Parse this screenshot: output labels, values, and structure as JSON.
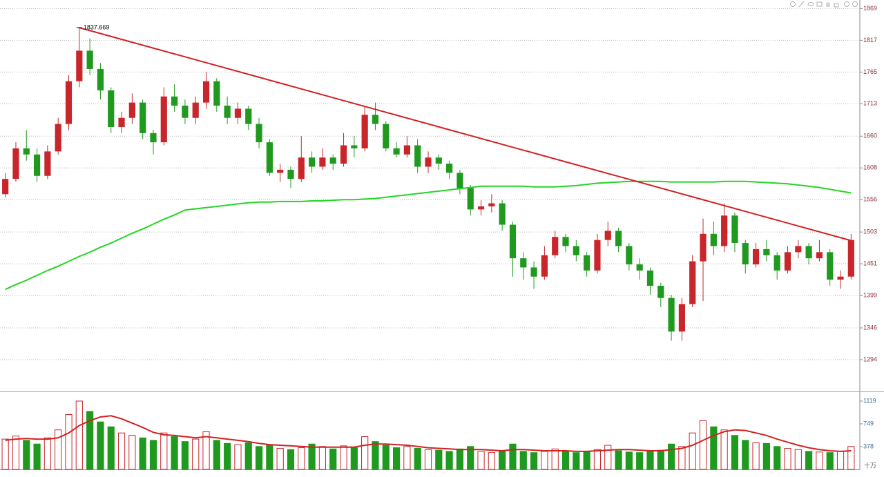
{
  "chart_data": [
    {
      "type": "candlestick",
      "ylim": [
        1242,
        1883
      ],
      "yticks": [
        1869,
        1817,
        1765,
        1713,
        1660,
        1608,
        1556,
        1503,
        1451,
        1399,
        1346,
        1294
      ],
      "grid": true,
      "up_color": "#c8262b",
      "down_color": "#1f9a1f",
      "series": [
        {
          "type": "candlestick",
          "values": [
            [
              1565,
              1600,
              1560,
              1590
            ],
            [
              1590,
              1650,
              1585,
              1640
            ],
            [
              1640,
              1670,
              1620,
              1630
            ],
            [
              1630,
              1640,
              1585,
              1595
            ],
            [
              1595,
              1645,
              1590,
              1635
            ],
            [
              1635,
              1690,
              1630,
              1680
            ],
            [
              1680,
              1760,
              1670,
              1750
            ],
            [
              1750,
              1837.669,
              1740,
              1800
            ],
            [
              1800,
              1820,
              1760,
              1770
            ],
            [
              1770,
              1780,
              1720,
              1735
            ],
            [
              1735,
              1740,
              1665,
              1675
            ],
            [
              1675,
              1700,
              1665,
              1690
            ],
            [
              1690,
              1730,
              1680,
              1715
            ],
            [
              1715,
              1720,
              1655,
              1665
            ],
            [
              1665,
              1670,
              1630,
              1650
            ],
            [
              1650,
              1740,
              1645,
              1725
            ],
            [
              1725,
              1745,
              1700,
              1710
            ],
            [
              1710,
              1720,
              1680,
              1690
            ],
            [
              1690,
              1725,
              1680,
              1715
            ],
            [
              1715,
              1765,
              1705,
              1750
            ],
            [
              1750,
              1755,
              1700,
              1710
            ],
            [
              1710,
              1725,
              1680,
              1690
            ],
            [
              1690,
              1715,
              1680,
              1705
            ],
            [
              1705,
              1710,
              1670,
              1680
            ],
            [
              1680,
              1690,
              1640,
              1650
            ],
            [
              1650,
              1655,
              1595,
              1600
            ],
            [
              1600,
              1615,
              1585,
              1605
            ],
            [
              1605,
              1610,
              1575,
              1590
            ],
            [
              1590,
              1660,
              1585,
              1625
            ],
            [
              1625,
              1635,
              1600,
              1610
            ],
            [
              1610,
              1640,
              1605,
              1625
            ],
            [
              1625,
              1630,
              1605,
              1615
            ],
            [
              1615,
              1665,
              1610,
              1645
            ],
            [
              1645,
              1660,
              1625,
              1640
            ],
            [
              1640,
              1710,
              1635,
              1695
            ],
            [
              1695,
              1715,
              1670,
              1680
            ],
            [
              1680,
              1685,
              1635,
              1640
            ],
            [
              1640,
              1650,
              1625,
              1630
            ],
            [
              1630,
              1660,
              1625,
              1645
            ],
            [
              1645,
              1655,
              1600,
              1610
            ],
            [
              1610,
              1635,
              1600,
              1625
            ],
            [
              1625,
              1630,
              1605,
              1615
            ],
            [
              1615,
              1620,
              1590,
              1600
            ],
            [
              1600,
              1605,
              1565,
              1575
            ],
            [
              1575,
              1580,
              1530,
              1540
            ],
            [
              1540,
              1555,
              1530,
              1545
            ],
            [
              1545,
              1565,
              1535,
              1550
            ],
            [
              1550,
              1555,
              1505,
              1515
            ],
            [
              1515,
              1520,
              1430,
              1460
            ],
            [
              1460,
              1470,
              1425,
              1445
            ],
            [
              1445,
              1455,
              1410,
              1430
            ],
            [
              1430,
              1480,
              1425,
              1465
            ],
            [
              1465,
              1505,
              1460,
              1495
            ],
            [
              1495,
              1500,
              1470,
              1480
            ],
            [
              1480,
              1490,
              1455,
              1465
            ],
            [
              1465,
              1470,
              1430,
              1440
            ],
            [
              1440,
              1500,
              1435,
              1490
            ],
            [
              1490,
              1520,
              1480,
              1505
            ],
            [
              1505,
              1510,
              1470,
              1480
            ],
            [
              1480,
              1485,
              1440,
              1450
            ],
            [
              1450,
              1460,
              1425,
              1440
            ],
            [
              1440,
              1445,
              1400,
              1415
            ],
            [
              1415,
              1420,
              1380,
              1395
            ],
            [
              1395,
              1400,
              1325,
              1340
            ],
            [
              1340,
              1395,
              1325,
              1385
            ],
            [
              1385,
              1465,
              1380,
              1455
            ],
            [
              1455,
              1525,
              1390,
              1500
            ],
            [
              1500,
              1520,
              1465,
              1480
            ],
            [
              1480,
              1550,
              1470,
              1530
            ],
            [
              1530,
              1535,
              1470,
              1485
            ],
            [
              1485,
              1490,
              1435,
              1450
            ],
            [
              1450,
              1485,
              1445,
              1475
            ],
            [
              1475,
              1490,
              1455,
              1465
            ],
            [
              1465,
              1470,
              1425,
              1440
            ],
            [
              1440,
              1480,
              1435,
              1470
            ],
            [
              1470,
              1490,
              1460,
              1480
            ],
            [
              1480,
              1485,
              1450,
              1460
            ],
            [
              1460,
              1490,
              1455,
              1470
            ],
            [
              1470,
              1475,
              1415,
              1425
            ],
            [
              1425,
              1440,
              1410,
              1430
            ],
            [
              1430,
              1500,
              1425,
              1490
            ]
          ]
        },
        {
          "type": "line",
          "color": "#22d622",
          "values": [
            1409,
            1417,
            1424,
            1432,
            1440,
            1447,
            1455,
            1463,
            1470,
            1478,
            1485,
            1493,
            1501,
            1508,
            1516,
            1524,
            1531,
            1539,
            1541,
            1543,
            1545,
            1547,
            1549,
            1551,
            1552,
            1552,
            1553,
            1553,
            1553,
            1554,
            1554,
            1555,
            1556,
            1556,
            1557,
            1558,
            1560,
            1562,
            1564,
            1566,
            1568,
            1570,
            1572,
            1574,
            1576,
            1578,
            1578,
            1578,
            1578,
            1578,
            1577,
            1577,
            1577,
            1578,
            1579,
            1581,
            1583,
            1584,
            1585,
            1586,
            1586,
            1586,
            1586,
            1585,
            1585,
            1585,
            1585,
            1585,
            1586,
            1586,
            1586,
            1585,
            1584,
            1583,
            1582,
            1580,
            1578,
            1576,
            1573,
            1570,
            1567
          ]
        }
      ],
      "trendline": {
        "color": "#d42020",
        "x": [
          7,
          80
        ],
        "values": [
          1837.669,
          1489
        ]
      }
    },
    {
      "type": "bar",
      "unit": "十万",
      "ylim": [
        7,
        1276
      ],
      "yticks": [
        1119,
        749,
        378
      ],
      "values": [
        500,
        550,
        480,
        420,
        520,
        650,
        900,
        1119,
        950,
        780,
        700,
        600,
        560,
        520,
        480,
        600,
        540,
        460,
        500,
        620,
        480,
        430,
        410,
        440,
        380,
        400,
        350,
        330,
        360,
        420,
        380,
        340,
        390,
        360,
        540,
        460,
        400,
        360,
        380,
        350,
        330,
        320,
        300,
        340,
        380,
        300,
        280,
        300,
        420,
        300,
        280,
        300,
        340,
        300,
        280,
        300,
        330,
        400,
        310,
        290,
        280,
        300,
        320,
        420,
        380,
        600,
        800,
        700,
        650,
        560,
        480,
        440,
        430,
        380,
        350,
        330,
        300,
        290,
        280,
        300,
        380
      ],
      "series": [
        {
          "type": "line",
          "color": "#d42020",
          "values": [
            480,
            500,
            510,
            500,
            500,
            520,
            600,
            720,
            800,
            860,
            880,
            830,
            760,
            690,
            610,
            570,
            560,
            540,
            520,
            540,
            520,
            500,
            480,
            460,
            430,
            410,
            400,
            390,
            380,
            370,
            370,
            370,
            370,
            370,
            400,
            420,
            420,
            410,
            400,
            380,
            360,
            350,
            340,
            330,
            330,
            330,
            320,
            310,
            330,
            330,
            320,
            310,
            310,
            310,
            300,
            300,
            310,
            320,
            330,
            330,
            320,
            310,
            310,
            330,
            350,
            400,
            480,
            560,
            620,
            650,
            640,
            600,
            560,
            500,
            450,
            400,
            360,
            330,
            310,
            300,
            310
          ]
        }
      ]
    }
  ]
}
